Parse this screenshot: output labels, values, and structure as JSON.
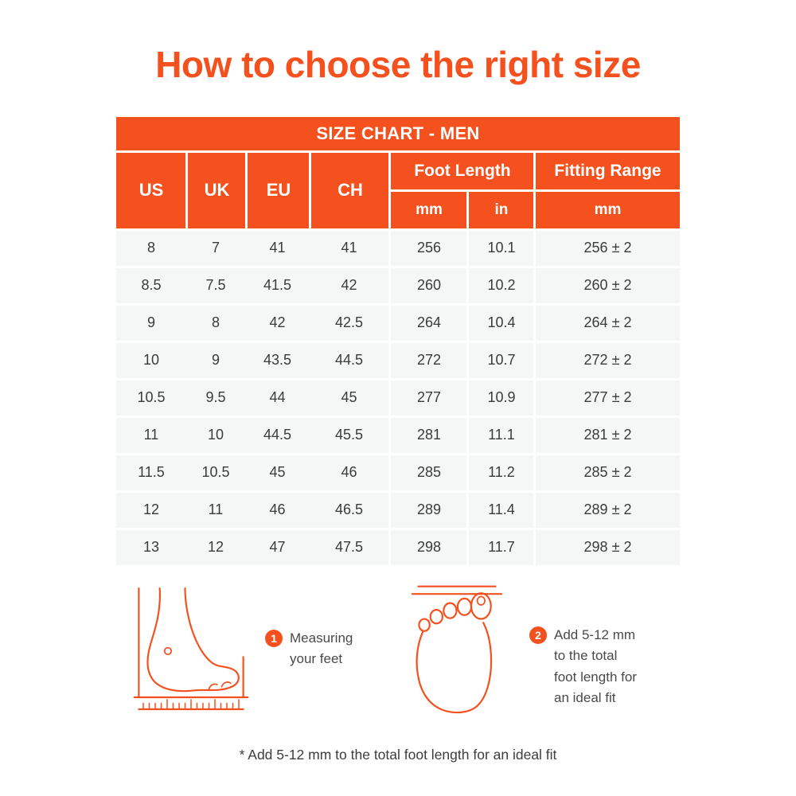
{
  "page": {
    "title": "How to choose the right size",
    "footnote": "* Add 5-12 mm to the total foot length for an ideal fit"
  },
  "colors": {
    "accent": "#F4511E",
    "row_bg": "#F5F6F6",
    "header_text": "#FFFFFF",
    "body_text": "#3B3B3B"
  },
  "chart_data": {
    "type": "table",
    "title": "SIZE CHART - MEN",
    "size_columns": [
      "US",
      "UK",
      "EU",
      "CH"
    ],
    "foot_length_label": "Foot Length",
    "foot_length_units": [
      "mm",
      "in"
    ],
    "fitting_range_label": "Fitting Range",
    "fitting_range_unit": "mm",
    "rows": [
      [
        "8",
        "7",
        "41",
        "41",
        "256",
        "10.1",
        "256 ± 2"
      ],
      [
        "8.5",
        "7.5",
        "41.5",
        "42",
        "260",
        "10.2",
        "260 ± 2"
      ],
      [
        "9",
        "8",
        "42",
        "42.5",
        "264",
        "10.4",
        "264 ± 2"
      ],
      [
        "10",
        "9",
        "43.5",
        "44.5",
        "272",
        "10.7",
        "272 ± 2"
      ],
      [
        "10.5",
        "9.5",
        "44",
        "45",
        "277",
        "10.9",
        "277 ± 2"
      ],
      [
        "11",
        "10",
        "44.5",
        "45.5",
        "281",
        "11.1",
        "281 ± 2"
      ],
      [
        "11.5",
        "10.5",
        "45",
        "46",
        "285",
        "11.2",
        "285 ± 2"
      ],
      [
        "12",
        "11",
        "46",
        "46.5",
        "289",
        "11.4",
        "289 ± 2"
      ],
      [
        "13",
        "12",
        "47",
        "47.5",
        "298",
        "11.7",
        "298 ± 2"
      ]
    ]
  },
  "instructions": [
    {
      "number": "1",
      "icon": "foot-side-measure-illustration",
      "text": "Measuring your feet"
    },
    {
      "number": "2",
      "icon": "foot-top-illustration",
      "text": "Add 5-12 mm to the total foot length for an ideal fit"
    }
  ]
}
